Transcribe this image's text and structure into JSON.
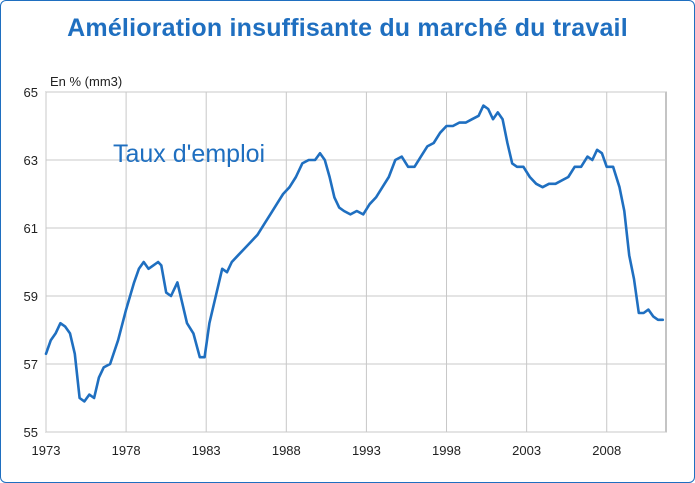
{
  "header": {
    "title": "Amélioration insuffisante du marché du travail"
  },
  "chart_data": {
    "type": "line",
    "title": "Amélioration insuffisante du marché du travail",
    "ylabel": "En % (mm3)",
    "xlabel": "",
    "annotation": "Taux d'emploi",
    "xlim": [
      1973,
      2011.7
    ],
    "ylim": [
      55,
      65
    ],
    "x_ticks": [
      "1973",
      "1978",
      "1983",
      "1988",
      "1993",
      "1998",
      "2003",
      "2008"
    ],
    "y_ticks": [
      "55",
      "57",
      "59",
      "61",
      "63",
      "65"
    ],
    "grid": true,
    "line_color": "#1f6fc0",
    "series": [
      {
        "x": [
          1973.0,
          1973.3,
          1973.6,
          1973.9,
          1974.2,
          1974.5,
          1974.8,
          1975.1,
          1975.4,
          1975.7,
          1976.0,
          1976.3,
          1976.6,
          1977.0,
          1977.5,
          1978.0,
          1978.5,
          1978.8,
          1979.1,
          1979.4,
          1979.7,
          1980.0,
          1980.2,
          1980.5,
          1980.8,
          1981.2,
          1981.5,
          1981.8,
          1982.2,
          1982.6,
          1982.9,
          1983.2,
          1983.6,
          1984.0,
          1984.3,
          1984.6,
          1985.0,
          1985.4,
          1985.8,
          1986.2,
          1986.6,
          1987.0,
          1987.4,
          1987.8,
          1988.2,
          1988.6,
          1989.0,
          1989.4,
          1989.8,
          1990.1,
          1990.4,
          1990.7,
          1991.0,
          1991.3,
          1991.6,
          1992.0,
          1992.4,
          1992.8,
          1993.2,
          1993.6,
          1994.0,
          1994.4,
          1994.8,
          1995.2,
          1995.6,
          1996.0,
          1996.4,
          1996.8,
          1997.2,
          1997.6,
          1998.0,
          1998.4,
          1998.8,
          1999.2,
          1999.6,
          2000.0,
          2000.3,
          2000.6,
          2000.9,
          2001.2,
          2001.5,
          2001.8,
          2002.1,
          2002.4,
          2002.8,
          2003.2,
          2003.6,
          2004.0,
          2004.4,
          2004.8,
          2005.2,
          2005.6,
          2006.0,
          2006.4,
          2006.8,
          2007.1,
          2007.4,
          2007.7,
          2008.0,
          2008.4,
          2008.8,
          2009.1,
          2009.4,
          2009.7,
          2010.0,
          2010.3,
          2010.6,
          2010.9,
          2011.2,
          2011.5
        ],
        "y": [
          57.3,
          57.7,
          57.9,
          58.2,
          58.1,
          57.9,
          57.3,
          56.0,
          55.9,
          56.1,
          56.0,
          56.6,
          56.9,
          57.0,
          57.7,
          58.6,
          59.4,
          59.8,
          60.0,
          59.8,
          59.9,
          60.0,
          59.9,
          59.1,
          59.0,
          59.4,
          58.8,
          58.2,
          57.9,
          57.2,
          57.2,
          58.2,
          59.0,
          59.8,
          59.7,
          60.0,
          60.2,
          60.4,
          60.6,
          60.8,
          61.1,
          61.4,
          61.7,
          62.0,
          62.2,
          62.5,
          62.9,
          63.0,
          63.0,
          63.2,
          63.0,
          62.5,
          61.9,
          61.6,
          61.5,
          61.4,
          61.5,
          61.4,
          61.7,
          61.9,
          62.2,
          62.5,
          63.0,
          63.1,
          62.8,
          62.8,
          63.1,
          63.4,
          63.5,
          63.8,
          64.0,
          64.0,
          64.1,
          64.1,
          64.2,
          64.3,
          64.6,
          64.5,
          64.2,
          64.4,
          64.2,
          63.5,
          62.9,
          62.8,
          62.8,
          62.5,
          62.3,
          62.2,
          62.3,
          62.3,
          62.4,
          62.5,
          62.8,
          62.8,
          63.1,
          63.0,
          63.3,
          63.2,
          62.8,
          62.8,
          62.2,
          61.5,
          60.2,
          59.5,
          58.5,
          58.5,
          58.6,
          58.4,
          58.3,
          58.3
        ]
      }
    ]
  }
}
